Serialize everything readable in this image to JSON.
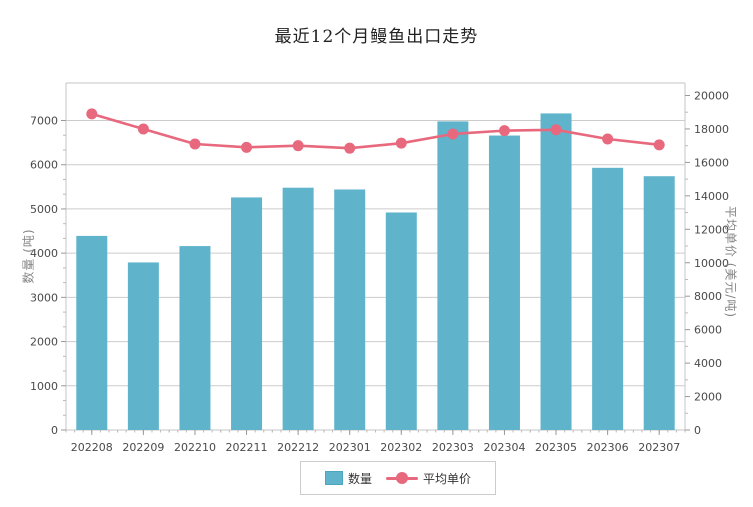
{
  "chart_data": {
    "type": "bar",
    "combo": "bar+line dual-axis",
    "title": "最近12个月鳗鱼出口走势",
    "categories": [
      "202208",
      "202209",
      "202210",
      "202211",
      "202212",
      "202301",
      "202302",
      "202303",
      "202304",
      "202305",
      "202306",
      "202307"
    ],
    "series": [
      {
        "name": "数量",
        "type": "bar",
        "axis": "left",
        "values": [
          4390,
          3790,
          4160,
          5260,
          5480,
          5440,
          4920,
          6980,
          6660,
          7160,
          5930,
          5740
        ]
      },
      {
        "name": "平均单价",
        "type": "line",
        "axis": "right",
        "values": [
          18900,
          18000,
          17100,
          16900,
          17000,
          16850,
          17150,
          17700,
          17900,
          17950,
          17400,
          17050
        ]
      }
    ],
    "left_axis": {
      "title": "数量 (吨)",
      "min": 0,
      "max": 7000,
      "label_interval": 1000,
      "minor_per_interval": 2
    },
    "right_axis": {
      "title": "平均单价 (美元/吨)",
      "min": 0,
      "max": 20000,
      "label_interval": 2000,
      "tick_interval": 1000
    },
    "legend": {
      "position": "bottom",
      "entries": [
        "数量",
        "平均单价"
      ]
    },
    "grid": true
  },
  "colors": {
    "bar": "#5fb4cb",
    "bar_border": "#4da6bf",
    "line": "#e8697d",
    "grid": "#cccccc",
    "axis": "#c4c4c4",
    "tick_major": "#999999",
    "tick_minor": "#bbbbbb",
    "tick_label": "#4a4a4a",
    "title": "#222222",
    "axis_title": "#848484"
  }
}
